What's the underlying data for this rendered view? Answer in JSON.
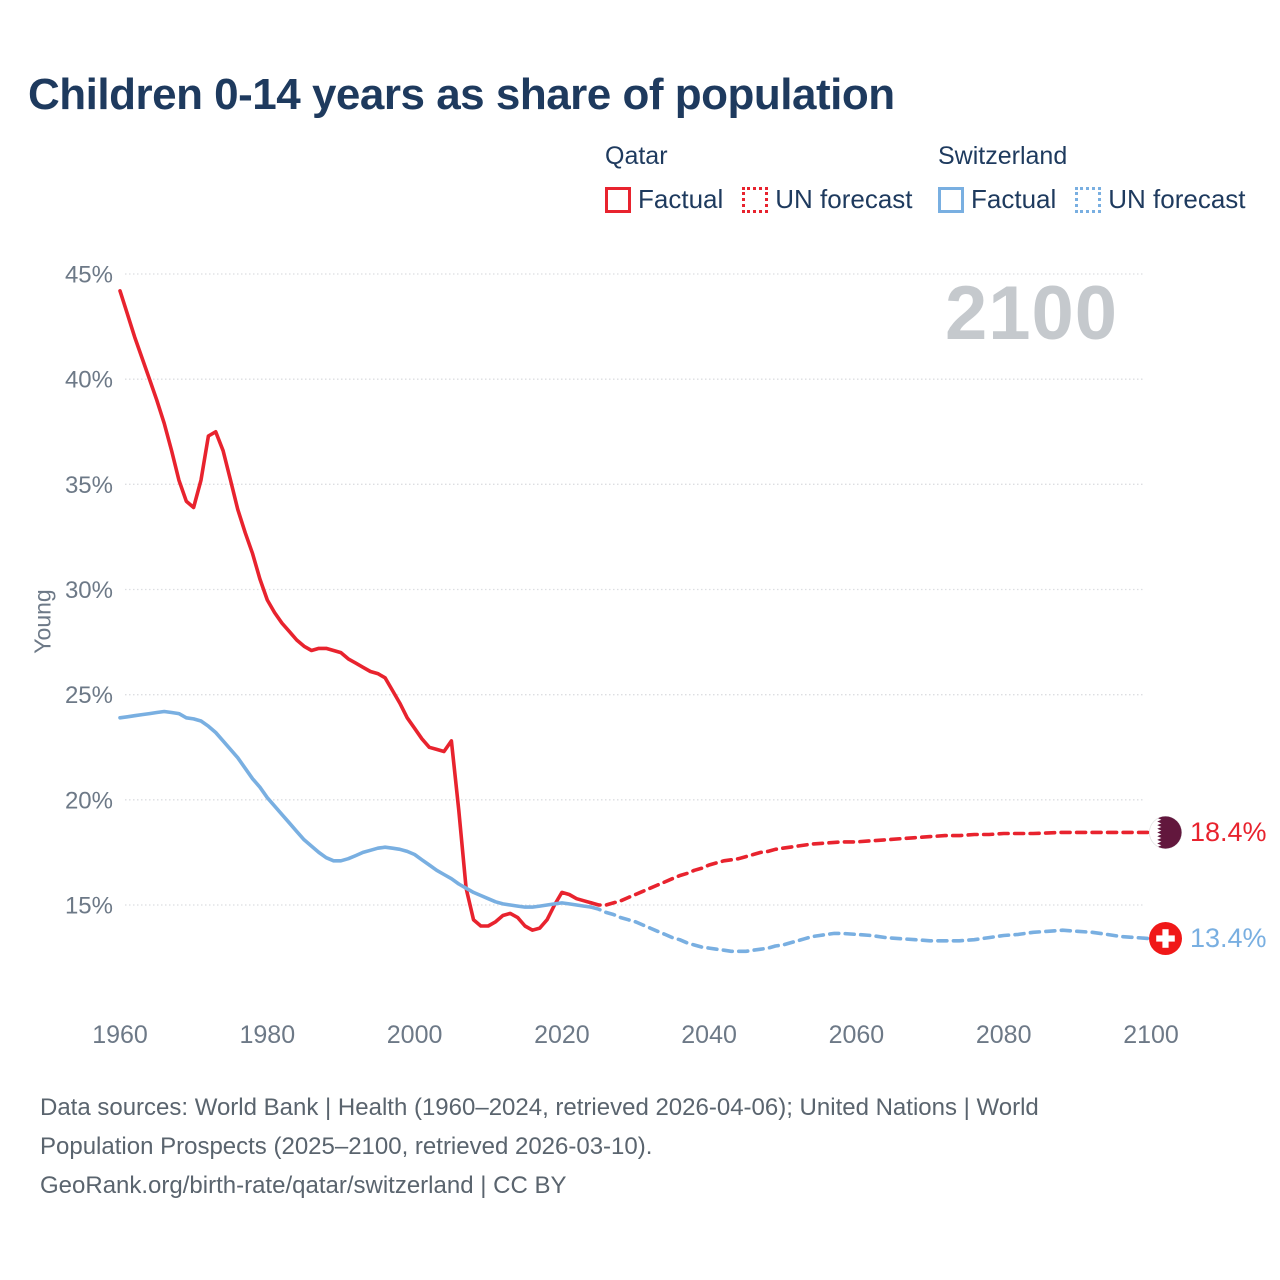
{
  "title": "Children 0-14 years as share of population",
  "legend": {
    "qatar": {
      "country": "Qatar",
      "factual": "Factual",
      "forecast": "UN forecast"
    },
    "switzerland": {
      "country": "Switzerland",
      "factual": "Factual",
      "forecast": "UN forecast"
    }
  },
  "footer": {
    "line1": "Data sources: World Bank | Health (1960–2024, retrieved 2026-04-06); United Nations | World",
    "line2": "Population Prospects (2025–2100, retrieved 2026-03-10).",
    "line3": "GeoRank.org/birth-rate/qatar/switzerland | CC BY"
  },
  "chart_data": {
    "type": "line",
    "title": "Children 0-14 years as share of population",
    "ylabel": "Young",
    "watermark": "2100",
    "grid": true,
    "legend_position": "top-right",
    "x_range": [
      1960,
      2100
    ],
    "y_range": [
      15,
      45
    ],
    "x_ticks": [
      1960,
      1980,
      2000,
      2020,
      2040,
      2060,
      2080,
      2100
    ],
    "y_ticks": [
      45,
      40,
      35,
      30,
      25,
      20,
      15
    ],
    "y_tick_suffix": "%",
    "colors": {
      "qatar": "#e8232e",
      "switzerland": "#79afe1"
    },
    "end_labels": {
      "qatar": {
        "text": "18.4%",
        "value": 18.4,
        "color": "#e8232e",
        "flag": "qatar"
      },
      "switzerland": {
        "text": "13.4%",
        "value": 13.4,
        "color": "#79afe1",
        "flag": "switzerland"
      }
    },
    "series": [
      {
        "id": "qatar-factual",
        "name": "Qatar Factual",
        "color": "#e8232e",
        "dash": false,
        "points": [
          [
            1960,
            44.2
          ],
          [
            1961,
            43.1
          ],
          [
            1962,
            42.0
          ],
          [
            1963,
            41.0
          ],
          [
            1964,
            40.0
          ],
          [
            1965,
            39.0
          ],
          [
            1966,
            37.9
          ],
          [
            1967,
            36.6
          ],
          [
            1968,
            35.2
          ],
          [
            1969,
            34.2
          ],
          [
            1970,
            33.9
          ],
          [
            1971,
            35.2
          ],
          [
            1972,
            37.3
          ],
          [
            1973,
            37.5
          ],
          [
            1974,
            36.6
          ],
          [
            1975,
            35.2
          ],
          [
            1976,
            33.8
          ],
          [
            1977,
            32.7
          ],
          [
            1978,
            31.7
          ],
          [
            1979,
            30.5
          ],
          [
            1980,
            29.5
          ],
          [
            1981,
            28.9
          ],
          [
            1982,
            28.4
          ],
          [
            1983,
            28.0
          ],
          [
            1984,
            27.6
          ],
          [
            1985,
            27.3
          ],
          [
            1986,
            27.1
          ],
          [
            1987,
            27.2
          ],
          [
            1988,
            27.2
          ],
          [
            1989,
            27.1
          ],
          [
            1990,
            27.0
          ],
          [
            1991,
            26.7
          ],
          [
            1992,
            26.5
          ],
          [
            1993,
            26.3
          ],
          [
            1994,
            26.1
          ],
          [
            1995,
            26.0
          ],
          [
            1996,
            25.8
          ],
          [
            1997,
            25.2
          ],
          [
            1998,
            24.6
          ],
          [
            1999,
            23.9
          ],
          [
            2000,
            23.4
          ],
          [
            2001,
            22.9
          ],
          [
            2002,
            22.5
          ],
          [
            2003,
            22.4
          ],
          [
            2004,
            22.3
          ],
          [
            2005,
            22.8
          ],
          [
            2006,
            19.5
          ],
          [
            2007,
            15.8
          ],
          [
            2008,
            14.3
          ],
          [
            2009,
            14.0
          ],
          [
            2010,
            14.0
          ],
          [
            2011,
            14.2
          ],
          [
            2012,
            14.5
          ],
          [
            2013,
            14.6
          ],
          [
            2014,
            14.4
          ],
          [
            2015,
            14.0
          ],
          [
            2016,
            13.8
          ],
          [
            2017,
            13.9
          ],
          [
            2018,
            14.3
          ],
          [
            2019,
            15.0
          ],
          [
            2020,
            15.6
          ],
          [
            2021,
            15.5
          ],
          [
            2022,
            15.3
          ],
          [
            2023,
            15.2
          ],
          [
            2024,
            15.1
          ]
        ]
      },
      {
        "id": "qatar-un-forecast",
        "name": "Qatar UN forecast",
        "color": "#e8232e",
        "dash": true,
        "points": [
          [
            2024,
            15.1
          ],
          [
            2025,
            15.0
          ],
          [
            2026,
            15.0
          ],
          [
            2027,
            15.1
          ],
          [
            2028,
            15.2
          ],
          [
            2029,
            15.35
          ],
          [
            2030,
            15.5
          ],
          [
            2031,
            15.65
          ],
          [
            2032,
            15.8
          ],
          [
            2033,
            15.95
          ],
          [
            2034,
            16.1
          ],
          [
            2035,
            16.25
          ],
          [
            2036,
            16.4
          ],
          [
            2037,
            16.5
          ],
          [
            2038,
            16.65
          ],
          [
            2039,
            16.75
          ],
          [
            2040,
            16.9
          ],
          [
            2041,
            17.0
          ],
          [
            2042,
            17.1
          ],
          [
            2043,
            17.15
          ],
          [
            2044,
            17.2
          ],
          [
            2045,
            17.3
          ],
          [
            2046,
            17.4
          ],
          [
            2047,
            17.5
          ],
          [
            2048,
            17.55
          ],
          [
            2049,
            17.65
          ],
          [
            2050,
            17.7
          ],
          [
            2052,
            17.8
          ],
          [
            2054,
            17.9
          ],
          [
            2056,
            17.95
          ],
          [
            2058,
            18.0
          ],
          [
            2060,
            18.0
          ],
          [
            2062,
            18.05
          ],
          [
            2064,
            18.1
          ],
          [
            2066,
            18.15
          ],
          [
            2068,
            18.2
          ],
          [
            2070,
            18.25
          ],
          [
            2072,
            18.3
          ],
          [
            2074,
            18.3
          ],
          [
            2076,
            18.35
          ],
          [
            2078,
            18.35
          ],
          [
            2080,
            18.4
          ],
          [
            2084,
            18.4
          ],
          [
            2088,
            18.45
          ],
          [
            2092,
            18.45
          ],
          [
            2096,
            18.45
          ],
          [
            2100,
            18.45
          ]
        ]
      },
      {
        "id": "switzerland-factual",
        "name": "Switzerland Factual",
        "color": "#79afe1",
        "dash": false,
        "points": [
          [
            1960,
            23.9
          ],
          [
            1961,
            23.95
          ],
          [
            1962,
            24.0
          ],
          [
            1963,
            24.05
          ],
          [
            1964,
            24.1
          ],
          [
            1965,
            24.15
          ],
          [
            1966,
            24.2
          ],
          [
            1967,
            24.15
          ],
          [
            1968,
            24.1
          ],
          [
            1969,
            23.9
          ],
          [
            1970,
            23.85
          ],
          [
            1971,
            23.75
          ],
          [
            1972,
            23.5
          ],
          [
            1973,
            23.2
          ],
          [
            1974,
            22.8
          ],
          [
            1975,
            22.4
          ],
          [
            1976,
            22.0
          ],
          [
            1977,
            21.5
          ],
          [
            1978,
            21.0
          ],
          [
            1979,
            20.6
          ],
          [
            1980,
            20.1
          ],
          [
            1981,
            19.7
          ],
          [
            1982,
            19.3
          ],
          [
            1983,
            18.9
          ],
          [
            1984,
            18.5
          ],
          [
            1985,
            18.1
          ],
          [
            1986,
            17.8
          ],
          [
            1987,
            17.5
          ],
          [
            1988,
            17.25
          ],
          [
            1989,
            17.1
          ],
          [
            1990,
            17.1
          ],
          [
            1991,
            17.2
          ],
          [
            1992,
            17.35
          ],
          [
            1993,
            17.5
          ],
          [
            1994,
            17.6
          ],
          [
            1995,
            17.7
          ],
          [
            1996,
            17.75
          ],
          [
            1997,
            17.7
          ],
          [
            1998,
            17.65
          ],
          [
            1999,
            17.55
          ],
          [
            2000,
            17.4
          ],
          [
            2001,
            17.15
          ],
          [
            2002,
            16.9
          ],
          [
            2003,
            16.65
          ],
          [
            2004,
            16.45
          ],
          [
            2005,
            16.25
          ],
          [
            2006,
            16.0
          ],
          [
            2007,
            15.8
          ],
          [
            2008,
            15.6
          ],
          [
            2009,
            15.45
          ],
          [
            2010,
            15.3
          ],
          [
            2011,
            15.15
          ],
          [
            2012,
            15.05
          ],
          [
            2013,
            15.0
          ],
          [
            2014,
            14.95
          ],
          [
            2015,
            14.9
          ],
          [
            2016,
            14.9
          ],
          [
            2017,
            14.95
          ],
          [
            2018,
            15.0
          ],
          [
            2019,
            15.05
          ],
          [
            2020,
            15.1
          ],
          [
            2021,
            15.05
          ],
          [
            2022,
            15.0
          ],
          [
            2023,
            14.95
          ],
          [
            2024,
            14.9
          ]
        ]
      },
      {
        "id": "switzerland-un-forecast",
        "name": "Switzerland UN forecast",
        "color": "#79afe1",
        "dash": true,
        "points": [
          [
            2024,
            14.9
          ],
          [
            2025,
            14.8
          ],
          [
            2026,
            14.65
          ],
          [
            2027,
            14.55
          ],
          [
            2028,
            14.4
          ],
          [
            2029,
            14.3
          ],
          [
            2030,
            14.2
          ],
          [
            2031,
            14.05
          ],
          [
            2032,
            13.9
          ],
          [
            2033,
            13.75
          ],
          [
            2034,
            13.6
          ],
          [
            2035,
            13.45
          ],
          [
            2036,
            13.35
          ],
          [
            2037,
            13.2
          ],
          [
            2038,
            13.1
          ],
          [
            2039,
            13.0
          ],
          [
            2040,
            12.95
          ],
          [
            2041,
            12.9
          ],
          [
            2042,
            12.85
          ],
          [
            2043,
            12.8
          ],
          [
            2044,
            12.8
          ],
          [
            2045,
            12.8
          ],
          [
            2046,
            12.85
          ],
          [
            2047,
            12.9
          ],
          [
            2048,
            12.95
          ],
          [
            2049,
            13.05
          ],
          [
            2050,
            13.1
          ],
          [
            2051,
            13.2
          ],
          [
            2052,
            13.3
          ],
          [
            2053,
            13.4
          ],
          [
            2054,
            13.5
          ],
          [
            2055,
            13.55
          ],
          [
            2056,
            13.6
          ],
          [
            2057,
            13.65
          ],
          [
            2058,
            13.65
          ],
          [
            2060,
            13.6
          ],
          [
            2062,
            13.55
          ],
          [
            2064,
            13.45
          ],
          [
            2066,
            13.4
          ],
          [
            2068,
            13.35
          ],
          [
            2070,
            13.3
          ],
          [
            2072,
            13.3
          ],
          [
            2074,
            13.3
          ],
          [
            2076,
            13.35
          ],
          [
            2078,
            13.45
          ],
          [
            2080,
            13.55
          ],
          [
            2082,
            13.6
          ],
          [
            2084,
            13.7
          ],
          [
            2086,
            13.75
          ],
          [
            2088,
            13.8
          ],
          [
            2090,
            13.75
          ],
          [
            2092,
            13.7
          ],
          [
            2094,
            13.6
          ],
          [
            2096,
            13.5
          ],
          [
            2098,
            13.45
          ],
          [
            2100,
            13.4
          ]
        ]
      }
    ]
  }
}
